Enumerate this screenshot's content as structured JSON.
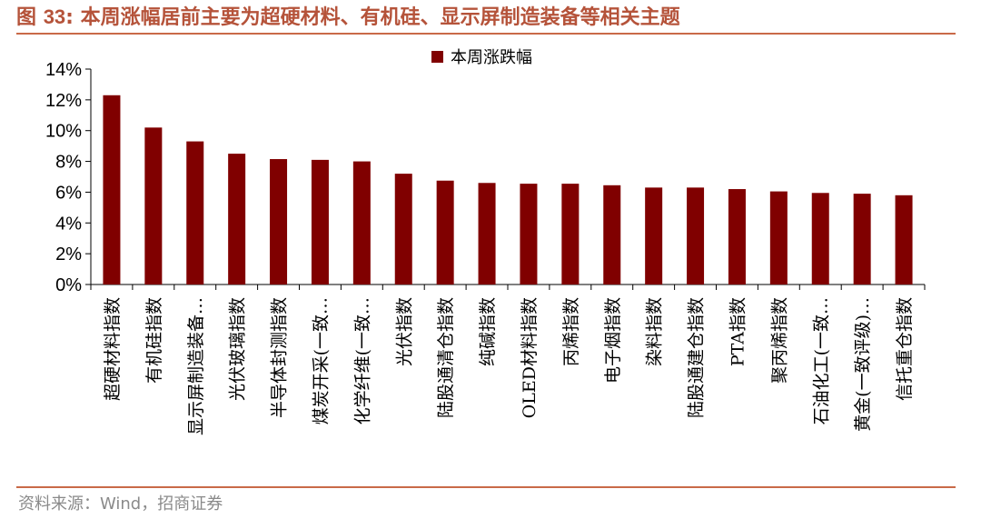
{
  "figure": {
    "number_prefix": "图",
    "number": "33",
    "colon": ":",
    "title": "本周涨幅居前主要为超硬材料、有机硅、显示屏制造装备等相关主题",
    "source": "资料来源：Wind，招商证券"
  },
  "colors": {
    "bar": "#800000",
    "title": "#b5533a",
    "rule": "#c96a48",
    "axis": "#000000"
  },
  "chart_data": {
    "type": "bar",
    "legend": "本周涨跌幅",
    "legend_position": "top-center",
    "grid": false,
    "ylim": [
      0,
      14
    ],
    "yticks": [
      0,
      2,
      4,
      6,
      8,
      10,
      12,
      14
    ],
    "ytick_labels": [
      "0%",
      "2%",
      "4%",
      "6%",
      "8%",
      "10%",
      "12%",
      "14%"
    ],
    "categories": [
      "超硬材料指数",
      "有机硅指数",
      "显示屏制造装备…",
      "光伏玻璃指数",
      "半导体封测指数",
      "煤炭开采(一致…",
      "化学纤维(一致…",
      "光伏指数",
      "陆股通清仓指数",
      "纯碱指数",
      "OLED材料指数",
      "丙烯指数",
      "电子烟指数",
      "染料指数",
      "陆股通建仓指数",
      "PTA指数",
      "聚丙烯指数",
      "石油化工(一致…",
      "黄金(一致评级)…",
      "信托重仓指数"
    ],
    "series": [
      {
        "name": "本周涨跌幅",
        "values": [
          12.3,
          10.2,
          9.3,
          8.5,
          8.15,
          8.1,
          8.0,
          7.2,
          6.75,
          6.6,
          6.55,
          6.55,
          6.45,
          6.3,
          6.3,
          6.2,
          6.05,
          5.95,
          5.9,
          5.8
        ]
      }
    ]
  }
}
